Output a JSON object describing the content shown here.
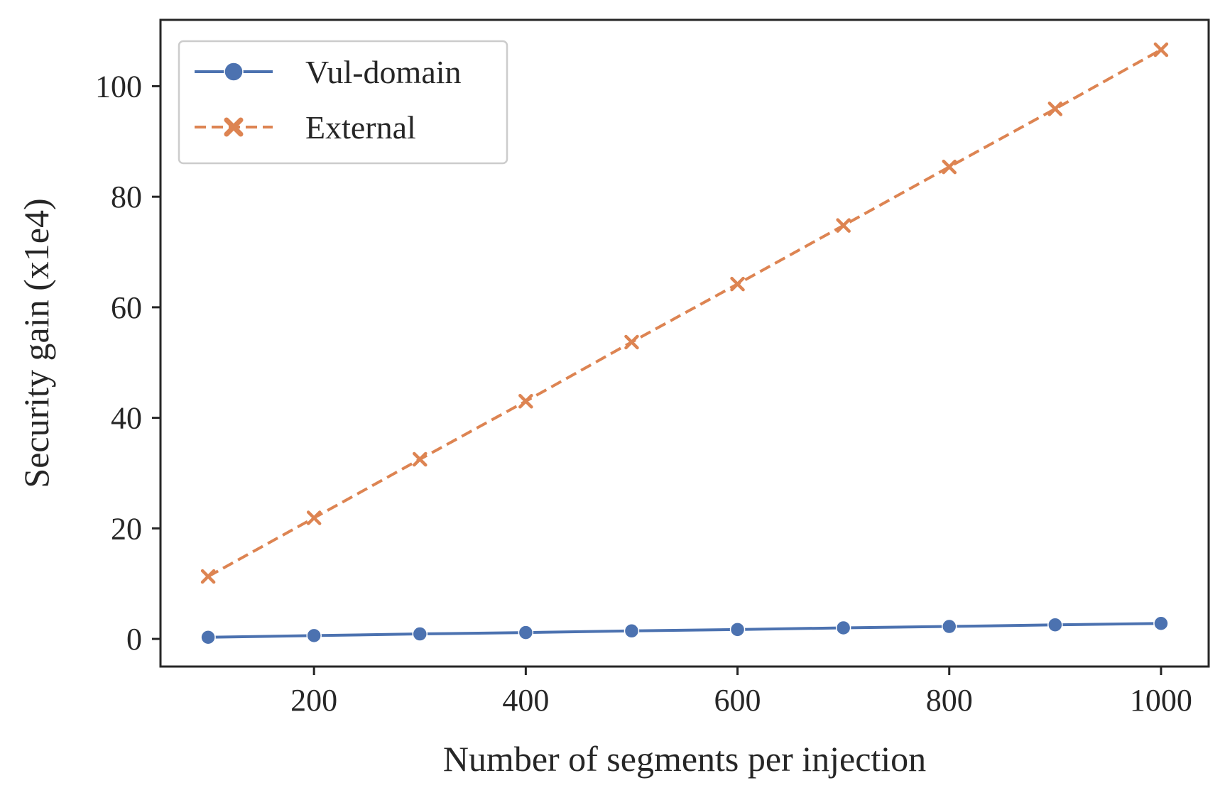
{
  "chart_data": {
    "type": "line",
    "title": "",
    "xlabel": "Number of segments per injection",
    "ylabel": "Security gain (x1e4)",
    "xlim": [
      55,
      1045
    ],
    "ylim": [
      -5,
      112
    ],
    "xticks": [
      200,
      400,
      600,
      800,
      1000
    ],
    "yticks": [
      0,
      20,
      40,
      60,
      80,
      100
    ],
    "grid": false,
    "legend_position": "top-left",
    "x": [
      100,
      200,
      300,
      400,
      500,
      600,
      700,
      800,
      900,
      1000
    ],
    "series": [
      {
        "name": "Vul-domain",
        "color": "#4c72b0",
        "marker": "circle",
        "linestyle": "solid",
        "values": [
          0.3,
          0.6,
          0.9,
          1.15,
          1.45,
          1.7,
          2.0,
          2.25,
          2.55,
          2.8
        ]
      },
      {
        "name": "External",
        "color": "#dd8452",
        "marker": "x",
        "linestyle": "dashed",
        "values": [
          11.3,
          21.9,
          32.5,
          43.0,
          53.7,
          64.2,
          74.8,
          85.4,
          95.9,
          106.6
        ]
      }
    ]
  }
}
